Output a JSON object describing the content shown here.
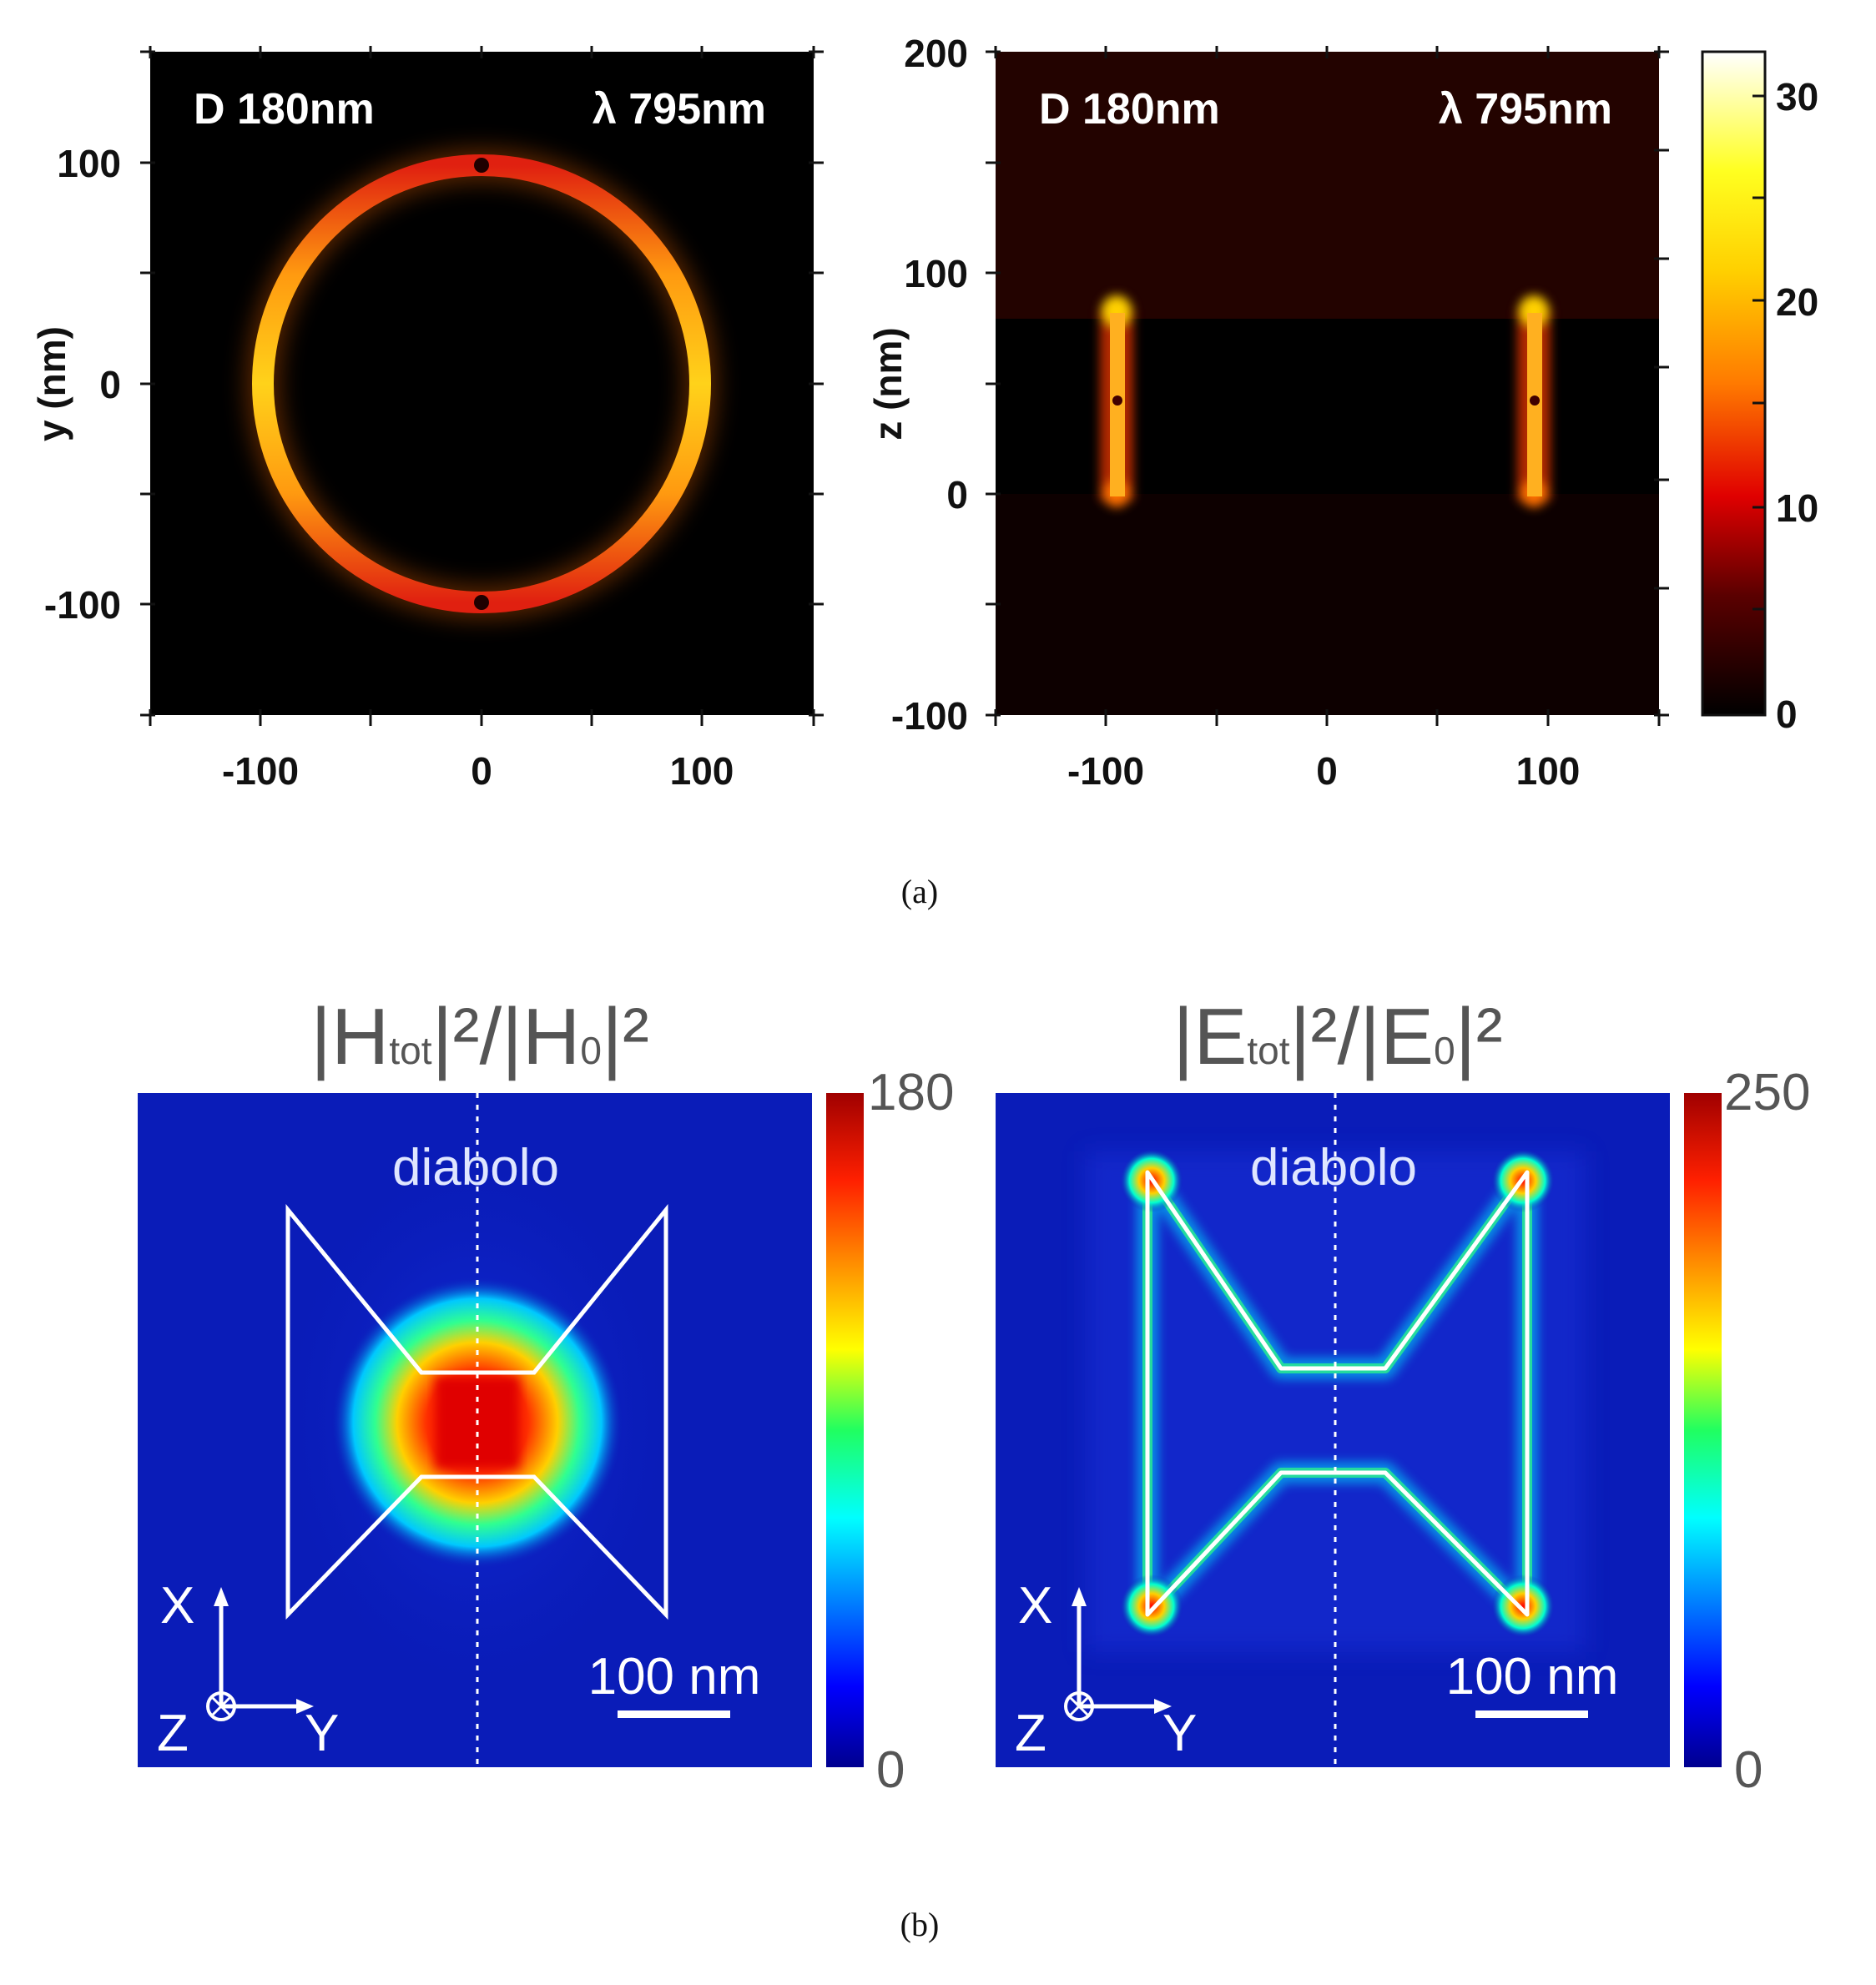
{
  "figure": {
    "panel_a": {
      "label": "(a)",
      "left": {
        "diameter": "D 180nm",
        "wavelength": "λ 795nm",
        "ylabel": "y (nm)",
        "xticks": [
          "-100",
          "0",
          "100"
        ],
        "yticks": [
          "100",
          "0",
          "-100"
        ]
      },
      "right": {
        "diameter": "D 180nm",
        "wavelength": "λ 795nm",
        "ylabel": "z (nm)",
        "xticks": [
          "-100",
          "0",
          "100"
        ],
        "yticks": [
          "200",
          "100",
          "0",
          "-100"
        ]
      },
      "colorbar": {
        "ticks": [
          "30",
          "20",
          "10",
          "0"
        ]
      }
    },
    "panel_b": {
      "label": "(b)",
      "left": {
        "title_main": "|H",
        "title_sub": "tot",
        "title_mid": "|²/|H",
        "title_sub2": "0",
        "title_end": "|²",
        "structure": "diabolo",
        "scalebar": "100 nm",
        "axis_x": "X",
        "axis_y": "Y",
        "axis_z": "Z",
        "cbar_max": "180",
        "cbar_min": "0"
      },
      "right": {
        "title_main": "|E",
        "title_sub": "tot",
        "title_mid": "|²/|E",
        "title_sub2": "0",
        "title_end": "|²",
        "structure": "diabolo",
        "scalebar": "100 nm",
        "axis_x": "X",
        "axis_y": "Y",
        "axis_z": "Z",
        "cbar_max": "250",
        "cbar_min": "0"
      }
    }
  },
  "colors": {
    "heat_background": "#000000",
    "jet_background": "#0a1cb8",
    "structure_outline": "#ffffff"
  }
}
